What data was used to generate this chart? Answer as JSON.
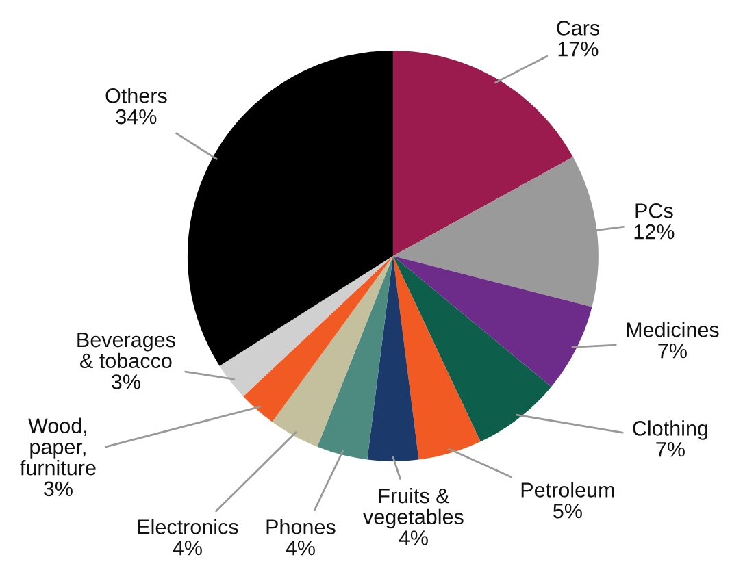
{
  "chart_data": {
    "type": "pie",
    "categories": [
      "Cars",
      "PCs",
      "Medicines",
      "Clothing",
      "Petroleum",
      "Fruits &\nvegetables",
      "Phones",
      "Electronics",
      "Wood,\npaper,\nfurniture",
      "Beverages\n& tobacco",
      "Others"
    ],
    "values": [
      17,
      12,
      7,
      7,
      5,
      4,
      4,
      4,
      3,
      3,
      34
    ],
    "value_labels": [
      "17%",
      "12%",
      "7%",
      "7%",
      "5%",
      "4%",
      "4%",
      "4%",
      "3%",
      "3%",
      "34%"
    ],
    "colors": [
      "#9b1b4f",
      "#9a9a9a",
      "#6e2c8a",
      "#0d5e4b",
      "#f15a22",
      "#1b3a6b",
      "#4d8b80",
      "#c4bf9c",
      "#f15a22",
      "#d0d0d0",
      "#000000"
    ]
  }
}
